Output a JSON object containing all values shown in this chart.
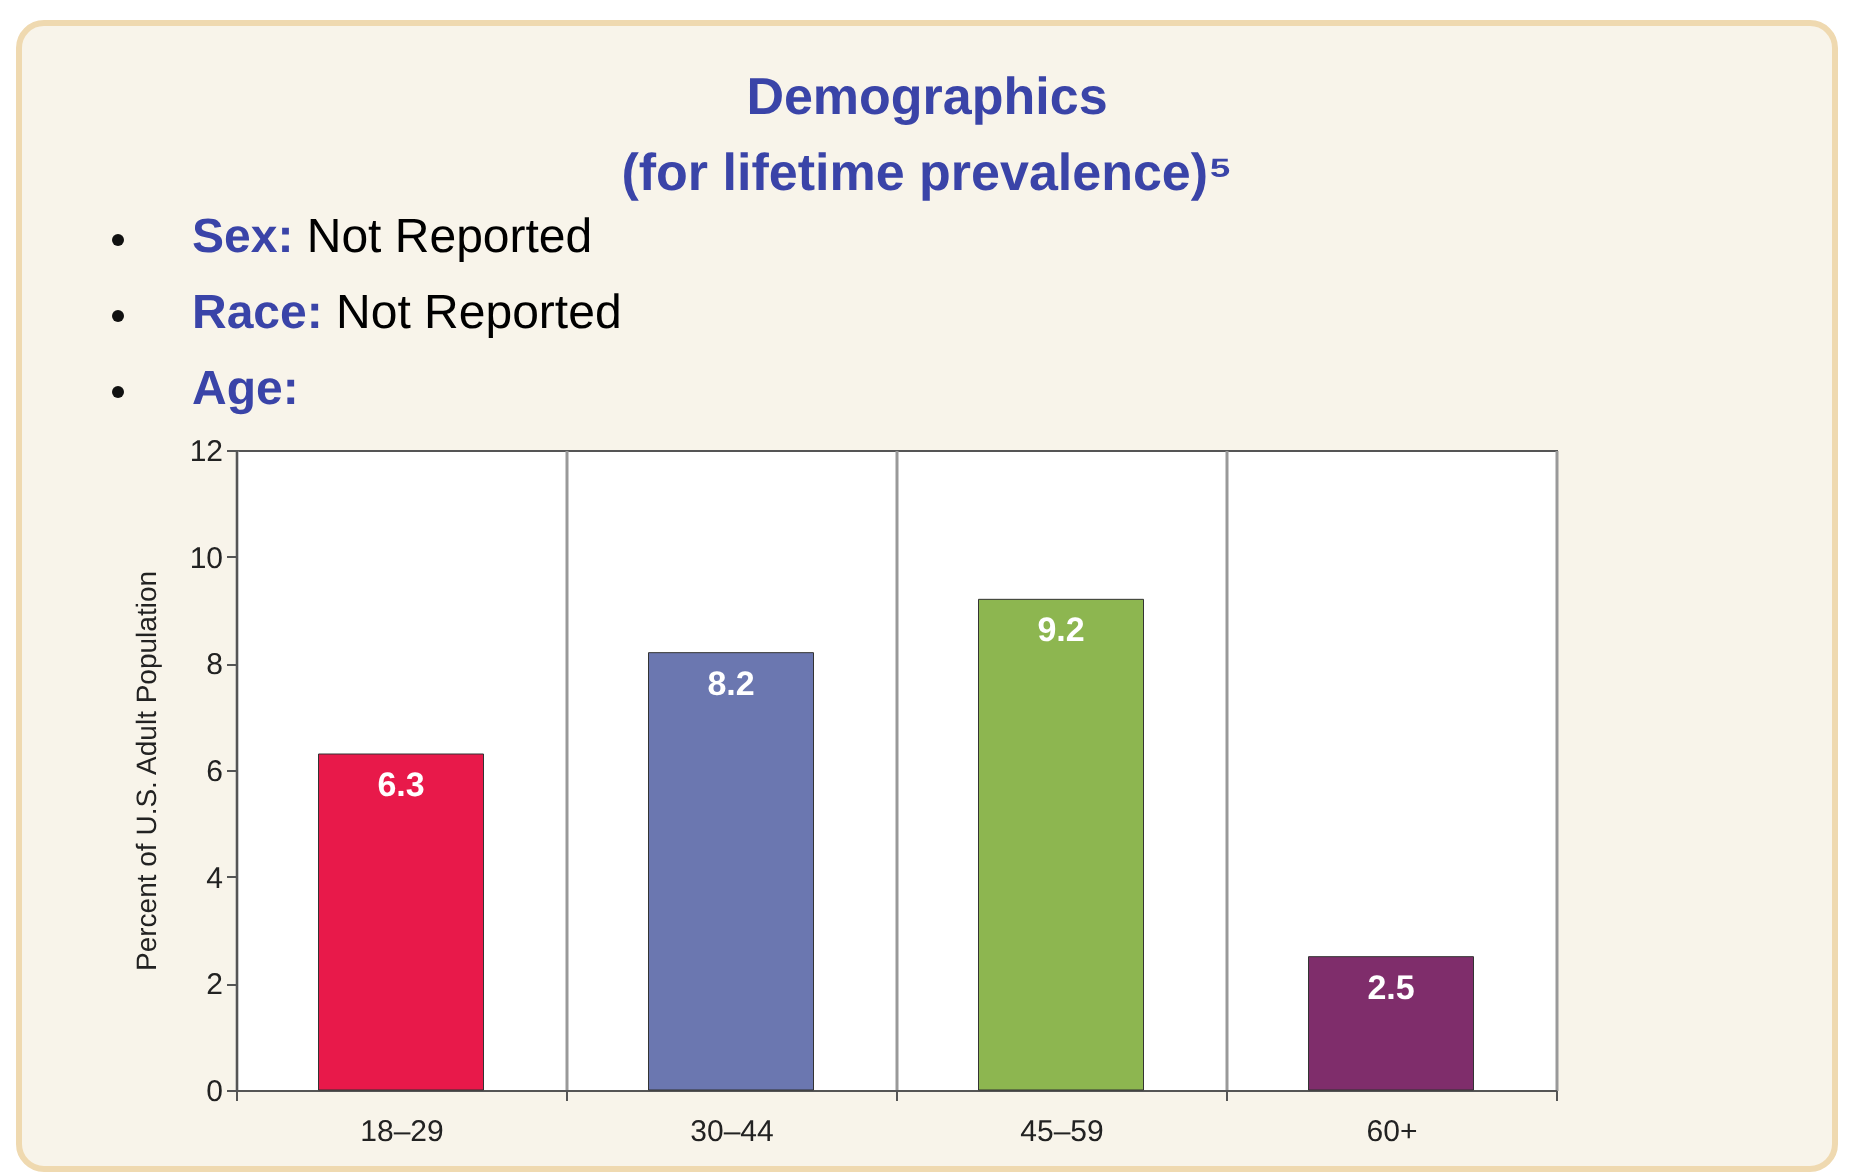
{
  "chart_data": {
    "type": "bar",
    "title": "Demographics",
    "subtitle": "(for lifetime prevalence)⁵",
    "annotations": [
      "Sex: Not Reported",
      "Race: Not Reported",
      "Age:"
    ],
    "categories": [
      "18–29",
      "30–44",
      "45–59",
      "60+"
    ],
    "values": [
      6.3,
      8.2,
      9.2,
      2.5
    ],
    "colors": [
      "#e8194a",
      "#6b77b0",
      "#8db650",
      "#7f2d6b"
    ],
    "ylabel": "Percent of U.S. Adult Population",
    "ylim": [
      0,
      12
    ],
    "yticks": [
      0,
      2,
      4,
      6,
      8,
      10,
      12
    ],
    "grid": "x",
    "data_labels": true
  }
}
